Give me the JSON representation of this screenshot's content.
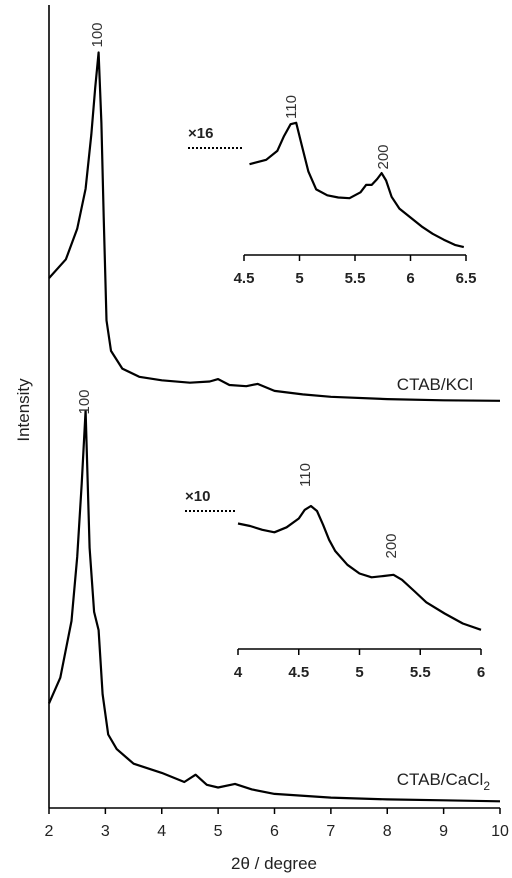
{
  "chart_data": [
    {
      "type": "line",
      "title": "",
      "xlabel": "2θ / degree",
      "ylabel": "Intensity",
      "xlim": [
        2,
        10
      ],
      "xticks": [
        "2",
        "3",
        "4",
        "5",
        "6",
        "7",
        "8",
        "9",
        "10"
      ],
      "grid": false,
      "series": [
        {
          "name": "CTAB/KCl",
          "peak_label": "100",
          "x": [
            2.0,
            2.3,
            2.5,
            2.65,
            2.75,
            2.82,
            2.88,
            2.93,
            2.97,
            3.02,
            3.1,
            3.3,
            3.6,
            4.0,
            4.5,
            4.85,
            5.0,
            5.2,
            5.5,
            5.7,
            6.0,
            6.5,
            7.0,
            8.0,
            9.0,
            10.0
          ],
          "y": [
            5.4,
            6.2,
            7.5,
            9.2,
            11.5,
            13.5,
            15.0,
            12.0,
            8.0,
            3.6,
            2.3,
            1.55,
            1.2,
            1.05,
            0.95,
            1.0,
            1.1,
            0.85,
            0.8,
            0.9,
            0.6,
            0.45,
            0.35,
            0.25,
            0.2,
            0.18
          ]
        },
        {
          "name": "CTAB/CaCl2",
          "name_main": "CTAB/CaCl",
          "name_sub": "2",
          "peak_label": "100",
          "x": [
            2.0,
            2.2,
            2.4,
            2.5,
            2.58,
            2.65,
            2.72,
            2.8,
            2.88,
            2.95,
            3.05,
            3.2,
            3.5,
            4.0,
            4.4,
            4.6,
            4.8,
            5.0,
            5.3,
            5.6,
            6.0,
            7.0,
            8.0,
            9.0,
            10.0
          ],
          "y": [
            5.5,
            6.9,
            10.0,
            13.5,
            17.5,
            21.5,
            14.0,
            10.5,
            9.5,
            6.0,
            3.8,
            3.0,
            2.2,
            1.7,
            1.2,
            1.6,
            1.05,
            0.9,
            1.1,
            0.8,
            0.55,
            0.35,
            0.25,
            0.2,
            0.15
          ]
        }
      ]
    },
    {
      "type": "line",
      "title": "",
      "inset_of": "CTAB/KCl",
      "scale_label": "×16",
      "xlim": [
        4.5,
        6.5
      ],
      "xticks": [
        "4.5",
        "5",
        "5.5",
        "6",
        "6.5"
      ],
      "peak_labels": [
        {
          "label": "110",
          "x": 4.95
        },
        {
          "label": "200",
          "x": 5.73
        }
      ],
      "series": [
        {
          "name": "",
          "x": [
            4.55,
            4.6,
            4.7,
            4.8,
            4.86,
            4.92,
            4.97,
            5.02,
            5.08,
            5.15,
            5.25,
            5.35,
            5.45,
            5.55,
            5.6,
            5.65,
            5.7,
            5.74,
            5.78,
            5.83,
            5.9,
            6.0,
            6.1,
            6.2,
            6.3,
            6.4,
            6.48
          ],
          "y": [
            6.0,
            6.1,
            6.3,
            6.9,
            7.9,
            8.7,
            8.8,
            7.3,
            5.5,
            4.3,
            3.9,
            3.75,
            3.7,
            4.1,
            4.6,
            4.6,
            5.0,
            5.4,
            4.9,
            3.8,
            3.0,
            2.4,
            1.8,
            1.3,
            0.9,
            0.55,
            0.4
          ]
        }
      ]
    },
    {
      "type": "line",
      "title": "",
      "inset_of": "CTAB/CaCl2",
      "scale_label": "×10",
      "xlim": [
        4,
        6
      ],
      "xticks": [
        "4",
        "4.5",
        "5",
        "5.5",
        "6"
      ],
      "peak_labels": [
        {
          "label": "110",
          "x": 4.6
        },
        {
          "label": "200",
          "x": 5.28
        }
      ],
      "series": [
        {
          "name": "",
          "x": [
            4.0,
            4.1,
            4.2,
            4.3,
            4.4,
            4.5,
            4.55,
            4.6,
            4.65,
            4.7,
            4.75,
            4.8,
            4.9,
            5.0,
            5.1,
            5.2,
            5.28,
            5.35,
            5.45,
            5.55,
            5.7,
            5.85,
            6.0
          ],
          "y": [
            8.6,
            8.4,
            8.1,
            7.9,
            8.3,
            9.0,
            9.7,
            10.0,
            9.6,
            8.5,
            7.3,
            6.4,
            5.3,
            4.6,
            4.3,
            4.4,
            4.5,
            4.1,
            3.2,
            2.3,
            1.4,
            0.6,
            0.1
          ]
        }
      ]
    }
  ]
}
